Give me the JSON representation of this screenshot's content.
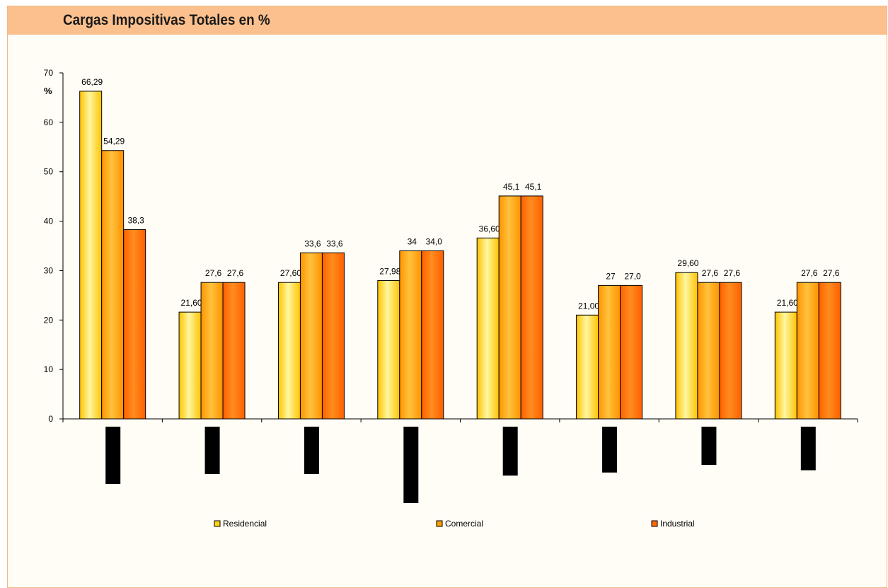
{
  "header": {
    "title": "Cargas Impositivas Totales en %"
  },
  "chart_data": {
    "type": "bar",
    "title": "Cargas Impositivas Totales en %",
    "ylabel": "%",
    "xlabel": "",
    "ylim": [
      0,
      70
    ],
    "yticks": [
      0,
      10,
      20,
      30,
      40,
      50,
      60,
      70
    ],
    "grid": false,
    "legend": "bottom",
    "categories": [
      "",
      "",
      "",
      "",
      "",
      "",
      "",
      ""
    ],
    "series": [
      {
        "name": "Residencial",
        "color": "#ffd21a",
        "values": [
          66.29,
          21.6,
          27.6,
          27.98,
          36.6,
          21.0,
          29.6,
          21.6
        ],
        "labels": [
          "66,29",
          "21,60",
          "27,60",
          "27,98",
          "36,60",
          "21,00",
          "29,60",
          "21,60"
        ]
      },
      {
        "name": "Comercial",
        "color": "#ff9d00",
        "values": [
          54.29,
          27.6,
          33.6,
          34,
          45.1,
          27,
          27.6,
          27.6
        ],
        "labels": [
          "54,29",
          "27,6",
          "33,6",
          "34",
          "45,1",
          "27",
          "27,6",
          "27,6"
        ]
      },
      {
        "name": "Industrial",
        "color": "#ff6a00",
        "values": [
          38.3,
          27.6,
          33.6,
          34.0,
          45.1,
          27.0,
          27.6,
          27.6
        ],
        "labels": [
          "38,3",
          "27,6",
          "33,6",
          "34,0",
          "45,1",
          "27,0",
          "27,6",
          "27,6"
        ]
      }
    ],
    "category_markers": {
      "color": "#000000",
      "relative_lengths": [
        0.75,
        0.62,
        0.62,
        1.0,
        0.64,
        0.6,
        0.5,
        0.57
      ]
    }
  }
}
